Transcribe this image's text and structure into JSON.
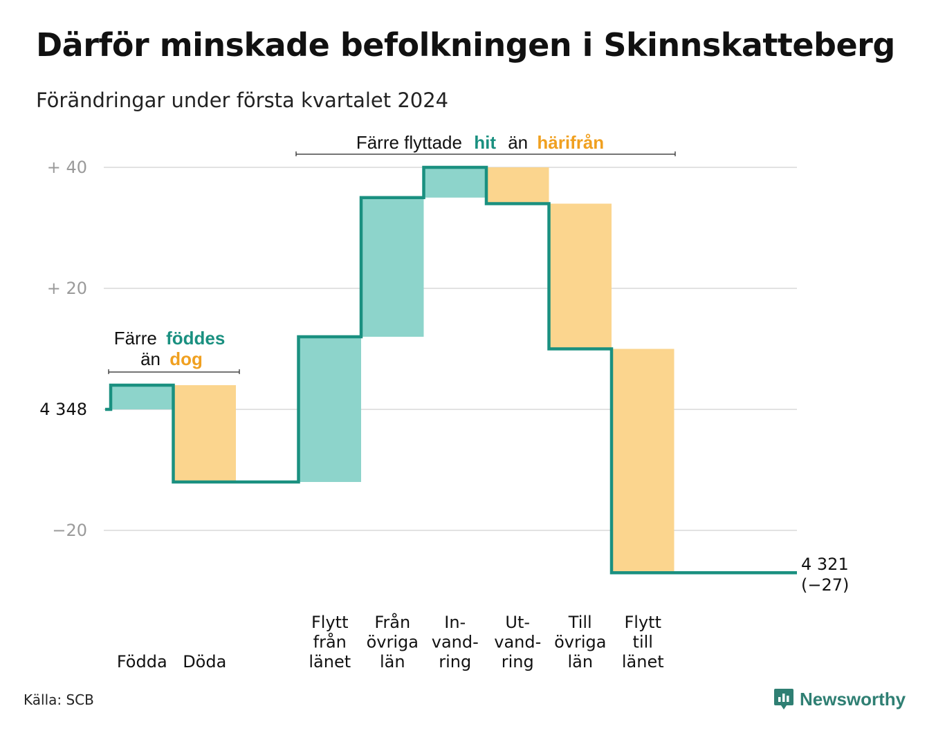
{
  "title": "Därför minskade befolkningen i Skinnskatteberg",
  "subtitle": "Förändringar under första kvartalet 2024",
  "source": "Källa: SCB",
  "brand": "Newsworthy",
  "colors": {
    "line": "#1a9080",
    "increase": "#8dd4cb",
    "decrease": "#fbd58e",
    "grid": "#e2e2e2",
    "hit": "#1a9080",
    "harifran": "#f0a020"
  },
  "annotations": {
    "births": {
      "pre": "Färre",
      "highlight1": "föddes",
      "mid": "än",
      "highlight2": "dog"
    },
    "moves": {
      "pre": "Färre flyttade",
      "highlight1": "hit",
      "mid": "än",
      "highlight2": "härifrån"
    }
  },
  "chart_data": {
    "type": "waterfall",
    "start_value": 4348,
    "start_label": "4 348",
    "y_ticks": [
      {
        "value": 40,
        "label": "+ 40"
      },
      {
        "value": 20,
        "label": "+ 20"
      },
      {
        "value": 0,
        "label": "4 348"
      },
      {
        "value": -20,
        "label": "−20"
      }
    ],
    "ylim": [
      -30,
      40
    ],
    "steps": [
      {
        "label": [
          "Födda"
        ],
        "change": 4,
        "type": "increase"
      },
      {
        "label": [
          "Döda"
        ],
        "change": -16,
        "type": "decrease"
      },
      {
        "label": [],
        "change": 0,
        "type": "none"
      },
      {
        "label": [
          "Flytt",
          "från",
          "länet"
        ],
        "change": 24,
        "type": "increase"
      },
      {
        "label": [
          "Från",
          "övriga",
          "län"
        ],
        "change": 23,
        "type": "increase"
      },
      {
        "label": [
          "In-",
          "vand-",
          "ring"
        ],
        "change": 5,
        "type": "increase"
      },
      {
        "label": [
          "Ut-",
          "vand-",
          "ring"
        ],
        "change": -6,
        "type": "decrease"
      },
      {
        "label": [
          "Till",
          "övriga",
          "län"
        ],
        "change": -24,
        "type": "decrease"
      },
      {
        "label": [
          "Flytt",
          "till",
          "länet"
        ],
        "change": -37,
        "type": "decrease"
      },
      {
        "label": [],
        "change": 0,
        "type": "none"
      }
    ],
    "end_value_label": "4 321",
    "end_change_label": "(−27)"
  }
}
